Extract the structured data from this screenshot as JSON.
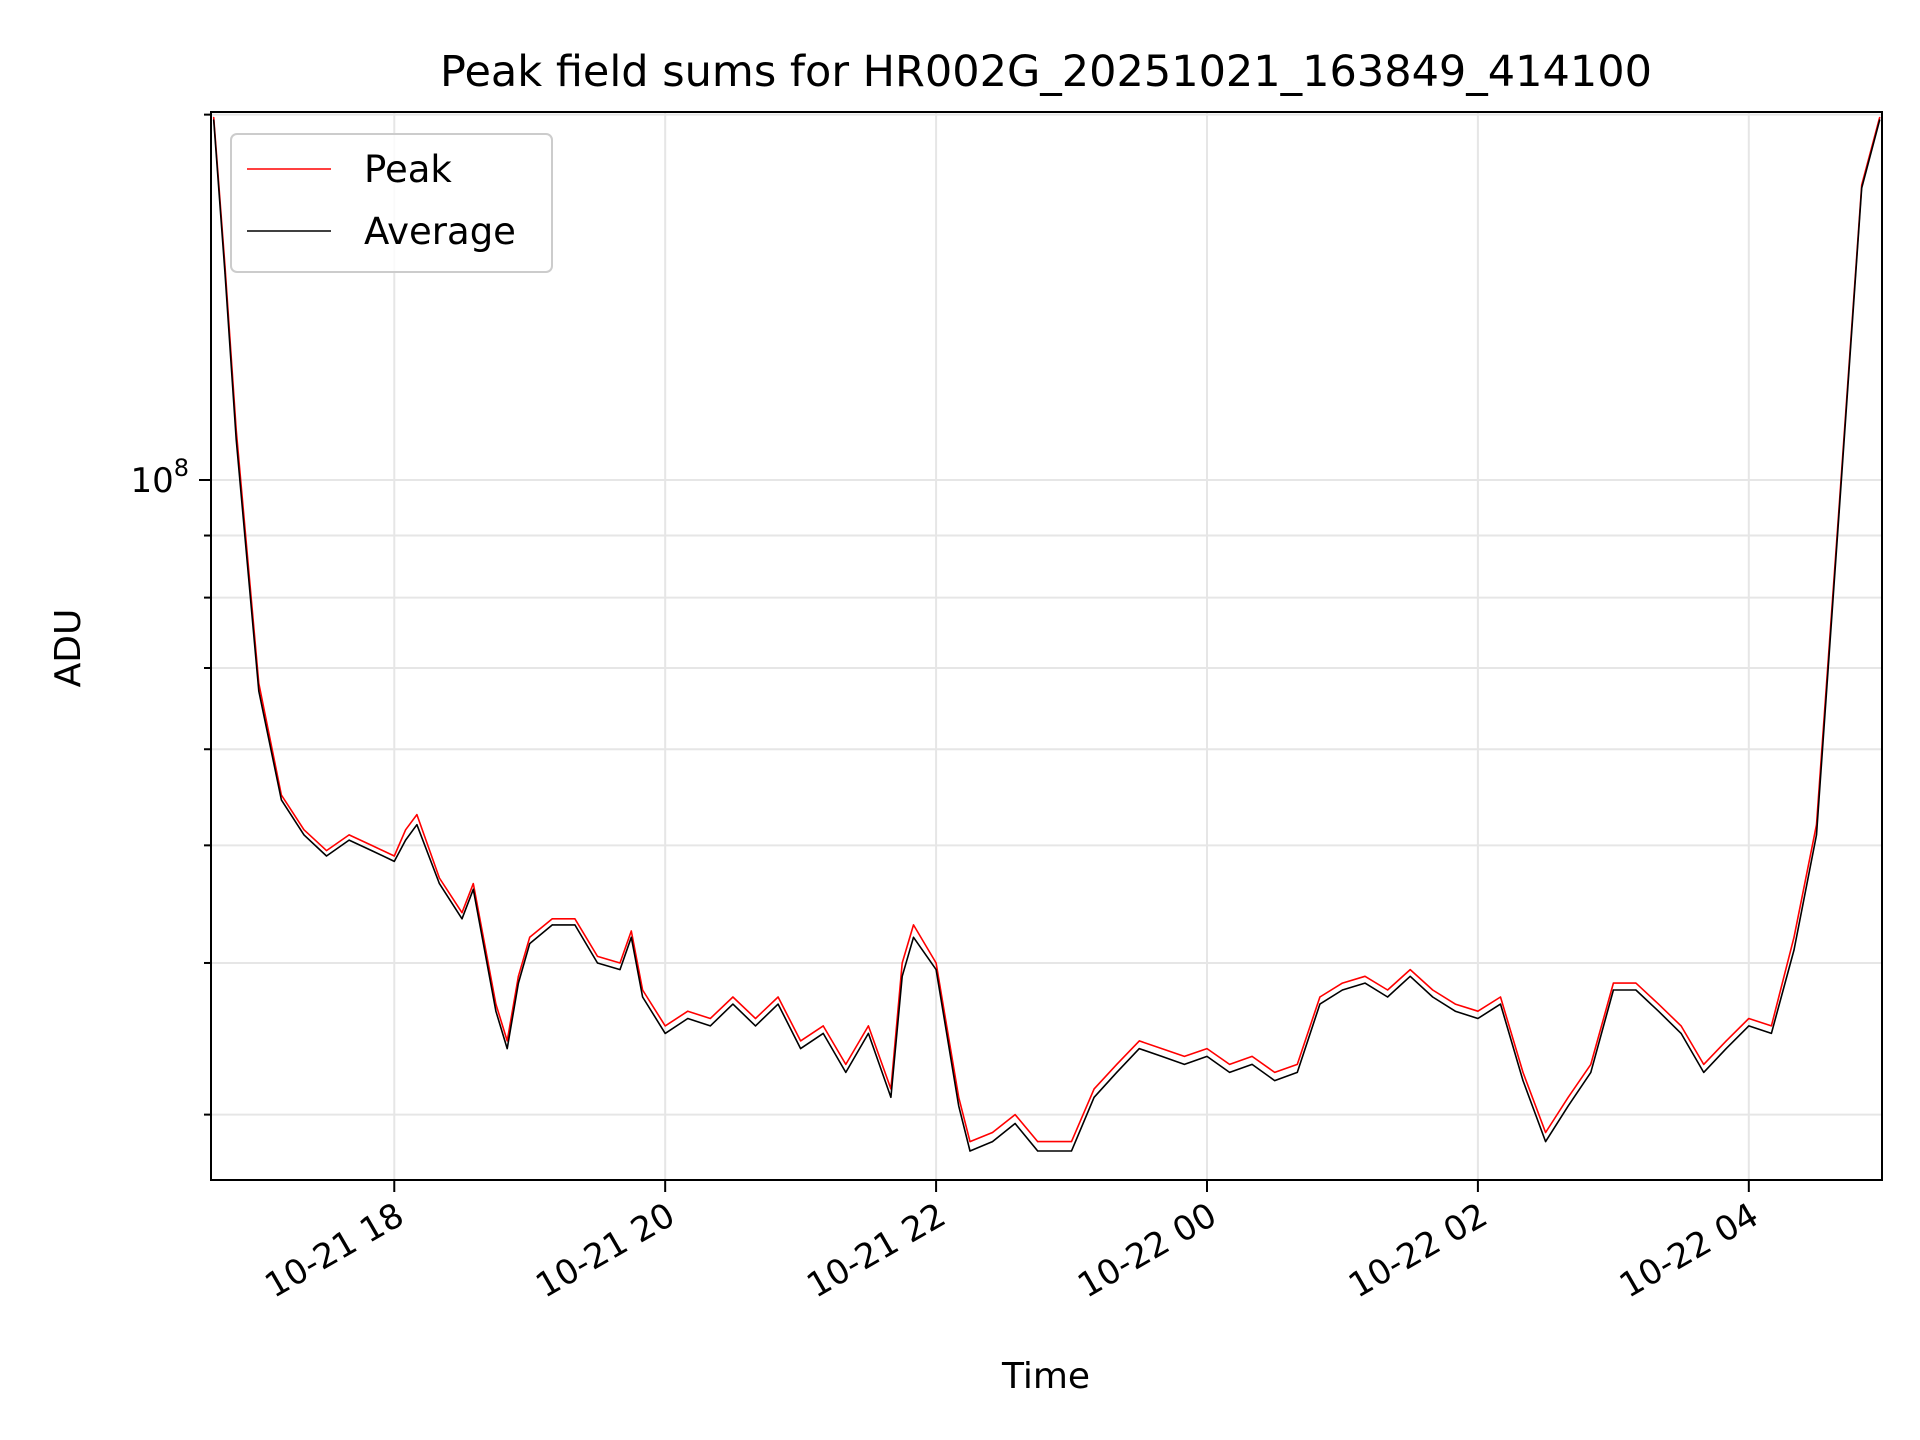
{
  "chart_data": {
    "type": "line",
    "title": "Peak field sums for HR002G_20251021_163849_414100",
    "xlabel": "Time",
    "ylabel": "ADU",
    "y_scale": "log",
    "ylim": [
      26500000,
      201000000
    ],
    "xlim": [
      "2025-10-21 16:38:49",
      "2025-10-22 04:59:00"
    ],
    "grid": true,
    "legend": "upper-left",
    "x_ticks": [
      "10-21 18",
      "10-21 20",
      "10-21 22",
      "10-22 00",
      "10-22 02",
      "10-22 04"
    ],
    "x_tick_values": [
      "2025-10-21 18:00",
      "2025-10-21 20:00",
      "2025-10-21 22:00",
      "2025-10-22 00:00",
      "2025-10-22 02:00",
      "2025-10-22 04:00"
    ],
    "y_ticks": [
      {
        "label_base": "10",
        "label_exp": "8",
        "value": 100000000
      }
    ],
    "series": [
      {
        "name": "Peak",
        "color": "#ff0000",
        "x": [
          "2025-10-21 16:40",
          "2025-10-21 16:45",
          "2025-10-21 16:50",
          "2025-10-21 17:00",
          "2025-10-21 17:10",
          "2025-10-21 17:20",
          "2025-10-21 17:30",
          "2025-10-21 17:40",
          "2025-10-21 17:50",
          "2025-10-21 18:00",
          "2025-10-21 18:05",
          "2025-10-21 18:10",
          "2025-10-21 18:20",
          "2025-10-21 18:30",
          "2025-10-21 18:35",
          "2025-10-21 18:45",
          "2025-10-21 18:50",
          "2025-10-21 18:55",
          "2025-10-21 19:00",
          "2025-10-21 19:10",
          "2025-10-21 19:20",
          "2025-10-21 19:30",
          "2025-10-21 19:40",
          "2025-10-21 19:45",
          "2025-10-21 19:50",
          "2025-10-21 20:00",
          "2025-10-21 20:10",
          "2025-10-21 20:20",
          "2025-10-21 20:30",
          "2025-10-21 20:40",
          "2025-10-21 20:50",
          "2025-10-21 21:00",
          "2025-10-21 21:10",
          "2025-10-21 21:20",
          "2025-10-21 21:30",
          "2025-10-21 21:40",
          "2025-10-21 21:45",
          "2025-10-21 21:50",
          "2025-10-21 22:00",
          "2025-10-21 22:10",
          "2025-10-21 22:15",
          "2025-10-21 22:25",
          "2025-10-21 22:35",
          "2025-10-21 22:45",
          "2025-10-21 23:00",
          "2025-10-21 23:10",
          "2025-10-21 23:20",
          "2025-10-21 23:30",
          "2025-10-21 23:40",
          "2025-10-21 23:50",
          "2025-10-22 00:00",
          "2025-10-22 00:10",
          "2025-10-22 00:20",
          "2025-10-22 00:30",
          "2025-10-22 00:40",
          "2025-10-22 00:50",
          "2025-10-22 01:00",
          "2025-10-22 01:10",
          "2025-10-22 01:20",
          "2025-10-22 01:30",
          "2025-10-22 01:40",
          "2025-10-22 01:50",
          "2025-10-22 02:00",
          "2025-10-22 02:10",
          "2025-10-22 02:20",
          "2025-10-22 02:30",
          "2025-10-22 02:40",
          "2025-10-22 02:50",
          "2025-10-22 03:00",
          "2025-10-22 03:10",
          "2025-10-22 03:20",
          "2025-10-22 03:30",
          "2025-10-22 03:40",
          "2025-10-22 03:50",
          "2025-10-22 04:00",
          "2025-10-22 04:10",
          "2025-10-22 04:20",
          "2025-10-22 04:30",
          "2025-10-22 04:40",
          "2025-10-22 04:50",
          "2025-10-22 04:58"
        ],
        "y": [
          199000000,
          150000000,
          110000000,
          68000000,
          55000000,
          51500000,
          49500000,
          51000000,
          50000000,
          49000000,
          51500000,
          53000000,
          47000000,
          44000000,
          46500000,
          37000000,
          34500000,
          39000000,
          42000000,
          43500000,
          43500000,
          40500000,
          40000000,
          42500000,
          38000000,
          35500000,
          36500000,
          36000000,
          37500000,
          36000000,
          37500000,
          34500000,
          35500000,
          33000000,
          35500000,
          31500000,
          40000000,
          43000000,
          40000000,
          31000000,
          28500000,
          29000000,
          30000000,
          28500000,
          28500000,
          31500000,
          33000000,
          34500000,
          34000000,
          33500000,
          34000000,
          33000000,
          33500000,
          32500000,
          33000000,
          37500000,
          38500000,
          39000000,
          38000000,
          39500000,
          38000000,
          37000000,
          36500000,
          37500000,
          32500000,
          29000000,
          31000000,
          33000000,
          38500000,
          38500000,
          37000000,
          35500000,
          33000000,
          34500000,
          36000000,
          35500000,
          42000000,
          52000000,
          95000000,
          175000000,
          199000000
        ]
      },
      {
        "name": "Average",
        "color": "#000000",
        "x": [
          "2025-10-21 16:40",
          "2025-10-21 16:45",
          "2025-10-21 16:50",
          "2025-10-21 17:00",
          "2025-10-21 17:10",
          "2025-10-21 17:20",
          "2025-10-21 17:30",
          "2025-10-21 17:40",
          "2025-10-21 17:50",
          "2025-10-21 18:00",
          "2025-10-21 18:05",
          "2025-10-21 18:10",
          "2025-10-21 18:20",
          "2025-10-21 18:30",
          "2025-10-21 18:35",
          "2025-10-21 18:45",
          "2025-10-21 18:50",
          "2025-10-21 18:55",
          "2025-10-21 19:00",
          "2025-10-21 19:10",
          "2025-10-21 19:20",
          "2025-10-21 19:30",
          "2025-10-21 19:40",
          "2025-10-21 19:45",
          "2025-10-21 19:50",
          "2025-10-21 20:00",
          "2025-10-21 20:10",
          "2025-10-21 20:20",
          "2025-10-21 20:30",
          "2025-10-21 20:40",
          "2025-10-21 20:50",
          "2025-10-21 21:00",
          "2025-10-21 21:10",
          "2025-10-21 21:20",
          "2025-10-21 21:30",
          "2025-10-21 21:40",
          "2025-10-21 21:45",
          "2025-10-21 21:50",
          "2025-10-21 22:00",
          "2025-10-21 22:10",
          "2025-10-21 22:15",
          "2025-10-21 22:25",
          "2025-10-21 22:35",
          "2025-10-21 22:45",
          "2025-10-21 23:00",
          "2025-10-21 23:10",
          "2025-10-21 23:20",
          "2025-10-21 23:30",
          "2025-10-21 23:40",
          "2025-10-21 23:50",
          "2025-10-22 00:00",
          "2025-10-22 00:10",
          "2025-10-22 00:20",
          "2025-10-22 00:30",
          "2025-10-22 00:40",
          "2025-10-22 00:50",
          "2025-10-22 01:00",
          "2025-10-22 01:10",
          "2025-10-22 01:20",
          "2025-10-22 01:30",
          "2025-10-22 01:40",
          "2025-10-22 01:50",
          "2025-10-22 02:00",
          "2025-10-22 02:10",
          "2025-10-22 02:20",
          "2025-10-22 02:30",
          "2025-10-22 02:40",
          "2025-10-22 02:50",
          "2025-10-22 03:00",
          "2025-10-22 03:10",
          "2025-10-22 03:20",
          "2025-10-22 03:30",
          "2025-10-22 03:40",
          "2025-10-22 03:50",
          "2025-10-22 04:00",
          "2025-10-22 04:10",
          "2025-10-22 04:20",
          "2025-10-22 04:30",
          "2025-10-22 04:40",
          "2025-10-22 04:50",
          "2025-10-22 04:58"
        ],
        "y": [
          198000000,
          148000000,
          108000000,
          67000000,
          54500000,
          51000000,
          49000000,
          50500000,
          49500000,
          48500000,
          50500000,
          52000000,
          46500000,
          43500000,
          46000000,
          36500000,
          34000000,
          38500000,
          41500000,
          43000000,
          43000000,
          40000000,
          39500000,
          42000000,
          37500000,
          35000000,
          36000000,
          35500000,
          37000000,
          35500000,
          37000000,
          34000000,
          35000000,
          32500000,
          35000000,
          31000000,
          39000000,
          42000000,
          39500000,
          30500000,
          28000000,
          28500000,
          29500000,
          28000000,
          28000000,
          31000000,
          32500000,
          34000000,
          33500000,
          33000000,
          33500000,
          32500000,
          33000000,
          32000000,
          32500000,
          37000000,
          38000000,
          38500000,
          37500000,
          39000000,
          37500000,
          36500000,
          36000000,
          37000000,
          32000000,
          28500000,
          30500000,
          32500000,
          38000000,
          38000000,
          36500000,
          35000000,
          32500000,
          34000000,
          35500000,
          35000000,
          41000000,
          51000000,
          94000000,
          174000000,
          198000000
        ]
      }
    ]
  }
}
